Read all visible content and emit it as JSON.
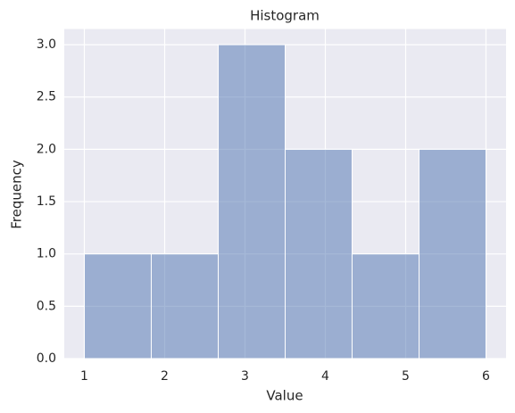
{
  "chart_data": {
    "type": "histogram",
    "title": "Histogram",
    "x_label": "Value",
    "y_label": "Frequency",
    "bins": [
      1,
      1.833,
      2.667,
      3.5,
      4.333,
      5.167,
      6
    ],
    "values": [
      1,
      1,
      3,
      2,
      1,
      2
    ],
    "color": "#4c72b0",
    "opacity": 0.5,
    "edge_color": "#ffffff",
    "xlim": [
      0.75,
      6.25
    ],
    "xticks": [
      1,
      2,
      3,
      4,
      5,
      6
    ],
    "ylim": [
      0,
      3.15
    ],
    "yticks": [
      {
        "value": 0,
        "label": "0.0"
      },
      {
        "value": 0.5,
        "label": "0.5"
      },
      {
        "value": 1,
        "label": "1.0"
      },
      {
        "value": 1.5,
        "label": "1.5"
      },
      {
        "value": 2,
        "label": "2.0"
      },
      {
        "value": 2.5,
        "label": "2.5"
      },
      {
        "value": 3,
        "label": "3.0"
      }
    ],
    "grid": true,
    "background": "#eaeaf2",
    "grid_color": "#ffffff"
  }
}
